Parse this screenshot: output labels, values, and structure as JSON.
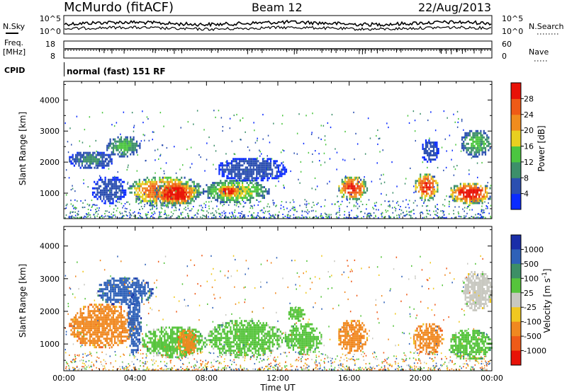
{
  "header": {
    "station": "McMurdo (fitACF)",
    "beam": "Beam 12",
    "date": "22/Aug/2013"
  },
  "noise_panel": {
    "left_label": "N.Sky",
    "right_label": "N.Search",
    "left_ticks": [
      "10^5",
      "10^0"
    ],
    "right_ticks": [
      "10^5",
      "10^0"
    ]
  },
  "freq_panel": {
    "left_label_1": "Freq.",
    "left_label_2": "[MHz]",
    "right_label": "Nave",
    "left_ticks": [
      "18",
      "8"
    ],
    "right_ticks": [
      "60",
      "0"
    ]
  },
  "cpid": {
    "label": "CPID",
    "value": "normal (fast) 151 RF"
  },
  "colors": {
    "power_scale": [
      "#0a2bff",
      "#2b4fb0",
      "#3d8f6a",
      "#4cc640",
      "#e8d020",
      "#f08c1e",
      "#ef5a16",
      "#e81208"
    ],
    "velocity_scale": [
      "#1a2ea8",
      "#2f61b8",
      "#3d8f66",
      "#56c43c",
      "#c8c8c0",
      "#f0c820",
      "#f08820",
      "#ef5a18",
      "#e81208"
    ]
  },
  "chart_data": [
    {
      "type": "heatmap",
      "title": "Power",
      "ylabel": "Slant Range [km]",
      "ylim": [
        180,
        4600
      ],
      "x_ticks": [
        "00:00",
        "04:00",
        "08:00",
        "12:00",
        "16:00",
        "20:00",
        "00:00"
      ],
      "y_ticks": [
        1000,
        2000,
        3000,
        4000
      ],
      "colorbar": {
        "label": "Power [dB]",
        "range": [
          0,
          32
        ],
        "ticks": [
          4,
          8,
          12,
          16,
          20,
          24,
          28
        ]
      },
      "regions": [
        {
          "x": [
            1.5,
            3.5
          ],
          "y": [
            700,
            1600
          ],
          "value": 6
        },
        {
          "x": [
            3.5,
            7.8
          ],
          "y": [
            600,
            1600
          ],
          "value": 24
        },
        {
          "x": [
            5.0,
            7.5
          ],
          "y": [
            650,
            1400
          ],
          "value": 30
        },
        {
          "x": [
            7.7,
            11.5
          ],
          "y": [
            700,
            1500
          ],
          "value": 16
        },
        {
          "x": [
            8.5,
            10.0
          ],
          "y": [
            900,
            1300
          ],
          "value": 28
        },
        {
          "x": [
            8.5,
            12.5
          ],
          "y": [
            1400,
            2200
          ],
          "value": 6
        },
        {
          "x": [
            2.3,
            4.3
          ],
          "y": [
            2200,
            2900
          ],
          "value": 12
        },
        {
          "x": [
            0.2,
            2.8
          ],
          "y": [
            1800,
            2400
          ],
          "value": 8
        },
        {
          "x": [
            15.3,
            17.0
          ],
          "y": [
            800,
            1600
          ],
          "value": 26
        },
        {
          "x": [
            19.6,
            21.0
          ],
          "y": [
            800,
            1700
          ],
          "value": 26
        },
        {
          "x": [
            21.5,
            24.0
          ],
          "y": [
            650,
            1400
          ],
          "value": 28
        },
        {
          "x": [
            20.0,
            21.0
          ],
          "y": [
            2000,
            2800
          ],
          "value": 6
        },
        {
          "x": [
            22.2,
            24.0
          ],
          "y": [
            2200,
            3100
          ],
          "value": 12
        }
      ]
    },
    {
      "type": "heatmap",
      "title": "Velocity",
      "ylabel": "Slant Range [km]",
      "xlabel": "Time UT",
      "ylim": [
        180,
        4600
      ],
      "x_ticks": [
        "00:00",
        "04:00",
        "08:00",
        "12:00",
        "16:00",
        "20:00",
        "00:00"
      ],
      "y_ticks": [
        1000,
        2000,
        3000,
        4000
      ],
      "colorbar": {
        "label": "Velocity [m s^-1]",
        "categories": [
          "1000",
          "500",
          "100",
          "25",
          "-25",
          "-100",
          "-500",
          "-1000"
        ]
      },
      "regions": [
        {
          "x": [
            0.2,
            4.0
          ],
          "y": [
            900,
            2300
          ],
          "value": -200
        },
        {
          "x": [
            1.8,
            5.0
          ],
          "y": [
            2200,
            3100
          ],
          "value": 600
        },
        {
          "x": [
            3.5,
            4.3
          ],
          "y": [
            700,
            2600
          ],
          "value": 800
        },
        {
          "x": [
            4.3,
            8.0
          ],
          "y": [
            600,
            1600
          ],
          "value": 80
        },
        {
          "x": [
            6.3,
            7.5
          ],
          "y": [
            700,
            1500
          ],
          "value": -200
        },
        {
          "x": [
            8.0,
            12.3
          ],
          "y": [
            600,
            1800
          ],
          "value": 70
        },
        {
          "x": [
            12.3,
            14.5
          ],
          "y": [
            700,
            1700
          ],
          "value": 50
        },
        {
          "x": [
            12.5,
            13.5
          ],
          "y": [
            1700,
            2200
          ],
          "value": 60
        },
        {
          "x": [
            15.3,
            17.0
          ],
          "y": [
            700,
            1800
          ],
          "value": -200
        },
        {
          "x": [
            19.5,
            21.3
          ],
          "y": [
            700,
            1700
          ],
          "value": -200
        },
        {
          "x": [
            21.5,
            24.0
          ],
          "y": [
            500,
            1500
          ],
          "value": 60
        },
        {
          "x": [
            22.3,
            24.0
          ],
          "y": [
            2000,
            3300
          ],
          "value": 10
        }
      ]
    }
  ]
}
